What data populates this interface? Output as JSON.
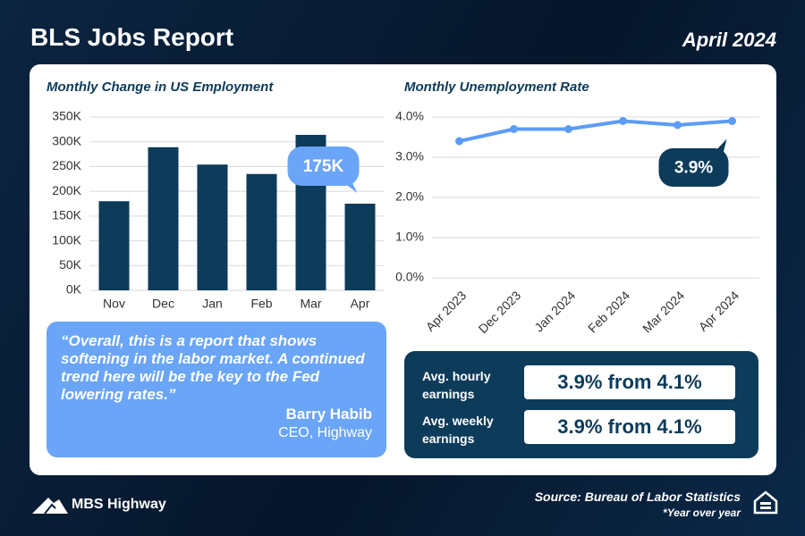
{
  "header": {
    "title": "BLS Jobs Report",
    "date": "April 2024"
  },
  "chart_data": [
    {
      "type": "bar",
      "title": "Monthly Change in US Employment",
      "categories": [
        "Nov",
        "Dec",
        "Jan",
        "Feb",
        "Mar",
        "Apr"
      ],
      "values": [
        180000,
        289000,
        254000,
        235000,
        314000,
        175000
      ],
      "value_labels": [
        null,
        null,
        null,
        null,
        null,
        "175K"
      ],
      "color": "#0d3b5a",
      "ylim": [
        0,
        350000
      ],
      "yticks": [
        {
          "value": 0,
          "label": "0K"
        },
        {
          "value": 50000,
          "label": "50K"
        },
        {
          "value": 100000,
          "label": "100K"
        },
        {
          "value": 150000,
          "label": "150K"
        },
        {
          "value": 200000,
          "label": "200K"
        },
        {
          "value": 250000,
          "label": "250K"
        },
        {
          "value": 300000,
          "label": "300K"
        },
        {
          "value": 350000,
          "label": "350K"
        }
      ],
      "grid": true
    },
    {
      "type": "line",
      "title": "Monthly Unemployment Rate",
      "categories": [
        "Apr 2023",
        "Dec 2023",
        "Jan 2024",
        "Feb 2024",
        "Mar 2024",
        "Apr 2024"
      ],
      "values": [
        3.4,
        3.7,
        3.7,
        3.9,
        3.8,
        3.9
      ],
      "value_labels": [
        null,
        null,
        null,
        null,
        null,
        "3.9%"
      ],
      "color": "#5b9cf5",
      "ylim": [
        0,
        4
      ],
      "yticks": [
        {
          "value": 0,
          "label": "0.0%"
        },
        {
          "value": 1,
          "label": "1.0%"
        },
        {
          "value": 2,
          "label": "2.0%"
        },
        {
          "value": 3,
          "label": "3.0%"
        },
        {
          "value": 4,
          "label": "4.0%"
        }
      ],
      "grid": true
    }
  ],
  "quote": {
    "text": "“Overall, this is a report that shows softening in the labor market. A continued trend here will be the key to the Fed lowering rates.”",
    "author": "Barry Habib",
    "role": "CEO, Highway"
  },
  "earnings": [
    {
      "label": "Avg. hourly earnings",
      "value": "3.9% from 4.1%"
    },
    {
      "label": "Avg. weekly earnings",
      "value": "3.9% from 4.1%"
    }
  ],
  "footer": {
    "logo": "MBS Highway",
    "source": "Source: Bureau of Labor Statistics",
    "note": "*Year over year"
  }
}
